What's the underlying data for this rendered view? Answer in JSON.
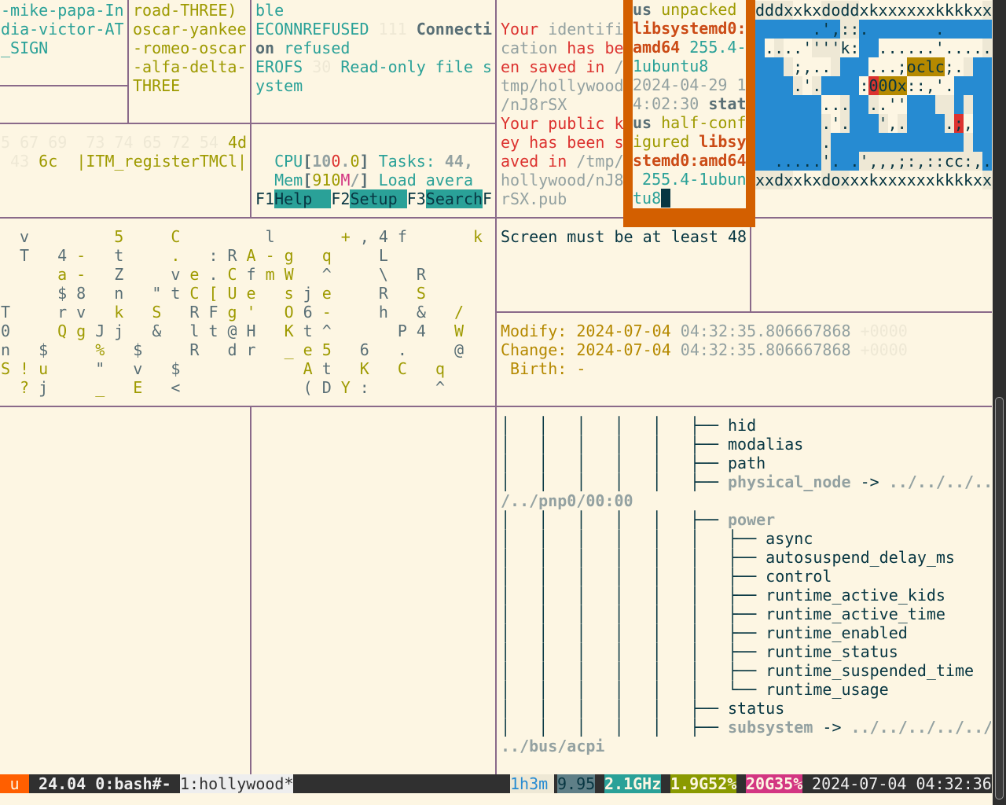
{
  "panes": {
    "a": {
      "lines": [
        [
          [
            "-mike-papa-In",
            "cy"
          ]
        ],
        [
          [
            "dia-victor-AT",
            "cy"
          ]
        ],
        [
          [
            "_SIGN",
            "cy"
          ]
        ]
      ]
    },
    "b": {
      "lines": [
        [
          [
            "road-THREE)",
            "ol"
          ]
        ],
        [
          [
            "oscar-yankee",
            "ol"
          ]
        ],
        [
          [
            "-romeo-oscar",
            "ol"
          ]
        ],
        [
          [
            "-alfa-delta-",
            "ol"
          ]
        ],
        [
          [
            "THREE",
            "ol"
          ]
        ]
      ]
    },
    "c": {
      "lines": [
        [
          [
            "ble",
            "cy"
          ]
        ],
        [
          [
            "ECONNREFUSED",
            "cy"
          ],
          [
            " 111 ",
            "fa"
          ],
          [
            "Connecti",
            "dkb"
          ]
        ],
        [
          [
            "on",
            "dkb"
          ],
          [
            " refused",
            "cy"
          ]
        ],
        [
          [
            "EROFS",
            "cy"
          ],
          [
            " 30 ",
            "fa"
          ],
          [
            "Read-only file s",
            "cy"
          ]
        ],
        [
          [
            "ystem",
            "cy"
          ]
        ]
      ]
    },
    "d": {
      "lines": [
        [
          [
            "5 67 69  73 74 65 72 54 ",
            "fa"
          ],
          [
            "4d",
            "ol"
          ]
        ],
        [
          [
            " 43 ",
            "fa"
          ],
          [
            "6c",
            "ol"
          ],
          [
            "  |ITM_registerTMCl|",
            "ol"
          ]
        ]
      ]
    },
    "e": {
      "lines": [
        [],
        [
          [
            "  CPU",
            "cy"
          ],
          [
            "[",
            "dkb"
          ],
          [
            "10",
            "grb"
          ],
          [
            "0",
            "rd"
          ],
          [
            ".",
            "grb"
          ],
          [
            "0",
            "ol"
          ],
          [
            "]",
            "dkb"
          ],
          [
            " Tasks: ",
            "cy"
          ],
          [
            "44,",
            "grb"
          ]
        ],
        [
          [
            "  Mem",
            "cy"
          ],
          [
            "[",
            "dkb"
          ],
          [
            "910",
            "ol"
          ],
          [
            "M",
            "mg"
          ],
          [
            "/",
            "grb"
          ],
          [
            "]",
            "dkb"
          ],
          [
            " Load avera",
            "cy"
          ]
        ],
        [
          [
            "F1",
            "tx"
          ],
          [
            "Help  ",
            "fk"
          ],
          [
            "F2",
            "tx"
          ],
          [
            "Setup ",
            "fk"
          ],
          [
            "F3",
            "tx"
          ],
          [
            "Search",
            "fk"
          ],
          [
            "F",
            "tx"
          ]
        ]
      ]
    },
    "f": {
      "lines": [
        [],
        [
          [
            "Your",
            "rd"
          ],
          [
            " identifi",
            "gr"
          ]
        ],
        [
          [
            "cation",
            "gr"
          ],
          [
            " has be",
            "rd"
          ]
        ],
        [
          [
            "en saved in ",
            "rd"
          ],
          [
            "/",
            "gr"
          ]
        ],
        [
          [
            "tmp/hollywood",
            "gr"
          ]
        ],
        [
          [
            "/nJ8rSX",
            "gr"
          ]
        ],
        [
          [
            "Your public k",
            "rd"
          ]
        ],
        [
          [
            "ey has been s",
            "rd"
          ]
        ],
        [
          [
            "aved in ",
            "rd"
          ],
          [
            "/tmp/",
            "gr"
          ]
        ],
        [
          [
            "hollywood/nJ8",
            "gr"
          ]
        ],
        [
          [
            "rSX.pub",
            "gr"
          ]
        ]
      ]
    },
    "popup": {
      "lines": [
        [
          [
            "us",
            "dkb"
          ],
          [
            " unpacked",
            "ol"
          ]
        ],
        [
          [
            "libsystemd0:",
            "or"
          ]
        ],
        [
          [
            "amd64",
            "or"
          ],
          [
            " 255.4-",
            "cy"
          ]
        ],
        [
          [
            "1ubuntu8",
            "cy"
          ]
        ],
        [
          [
            "2024-04-29 1",
            "gr"
          ]
        ],
        [
          [
            "4:02:30",
            "gr"
          ],
          [
            " stat",
            "dkb"
          ]
        ],
        [
          [
            "us",
            "dkb"
          ],
          [
            " half-conf",
            "ol"
          ]
        ],
        [
          [
            "igured",
            "ol"
          ],
          [
            " libsy",
            "or"
          ]
        ],
        [
          [
            "stemd0:amd64",
            "or"
          ]
        ],
        [
          [
            " 255.4-1ubun",
            "cy"
          ]
        ],
        [
          [
            "tu8",
            "cy"
          ]
        ]
      ]
    },
    "g": {
      "lines": [
        [
          [
            "Screen must be at least 48",
            "tx"
          ]
        ]
      ]
    },
    "h": {
      "lines": [
        [
          [
            "Modify: 2024-07-04 ",
            "gd"
          ],
          [
            "04:32:35.806667868",
            "gr"
          ],
          [
            " +0000",
            "fa"
          ]
        ],
        [
          [
            "Change: 2024-07-04 ",
            "gd"
          ],
          [
            "04:32:35.806667868",
            "gr"
          ],
          [
            " +0000",
            "fa"
          ]
        ],
        [
          [
            " Birth: -",
            "gd"
          ]
        ]
      ]
    },
    "tree": {
      "lines": [
        [
          [
            "│   │   │   │   │   ├── ",
            "tx"
          ],
          [
            "hid",
            "tx"
          ]
        ],
        [
          [
            "│   │   │   │   │   ├── ",
            "tx"
          ],
          [
            "modalias",
            "tx"
          ]
        ],
        [
          [
            "│   │   │   │   │   ├── ",
            "tx"
          ],
          [
            "path",
            "tx"
          ]
        ],
        [
          [
            "│   │   │   │   │   ├── ",
            "tx"
          ],
          [
            "physical_node",
            "grb"
          ],
          [
            " -> ",
            "tx"
          ],
          [
            "../../../..",
            "grb"
          ]
        ],
        [
          [
            "/../pnp0/00:00",
            "grb"
          ]
        ],
        [
          [
            "│   │   │   │   │   ├── ",
            "tx"
          ],
          [
            "power",
            "grb"
          ]
        ],
        [
          [
            "│   │   │   │   │   │   ├── ",
            "tx"
          ],
          [
            "async",
            "tx"
          ]
        ],
        [
          [
            "│   │   │   │   │   │   ├── ",
            "tx"
          ],
          [
            "autosuspend_delay_ms",
            "tx"
          ]
        ],
        [
          [
            "│   │   │   │   │   │   ├── ",
            "tx"
          ],
          [
            "control",
            "tx"
          ]
        ],
        [
          [
            "│   │   │   │   │   │   ├── ",
            "tx"
          ],
          [
            "runtime_active_kids",
            "tx"
          ]
        ],
        [
          [
            "│   │   │   │   │   │   ├── ",
            "tx"
          ],
          [
            "runtime_active_time",
            "tx"
          ]
        ],
        [
          [
            "│   │   │   │   │   │   ├── ",
            "tx"
          ],
          [
            "runtime_enabled",
            "tx"
          ]
        ],
        [
          [
            "│   │   │   │   │   │   ├── ",
            "tx"
          ],
          [
            "runtime_status",
            "tx"
          ]
        ],
        [
          [
            "│   │   │   │   │   │   ├── ",
            "tx"
          ],
          [
            "runtime_suspended_time",
            "tx"
          ]
        ],
        [
          [
            "│   │   │   │   │   │   └── ",
            "tx"
          ],
          [
            "runtime_usage",
            "tx"
          ]
        ],
        [
          [
            "│   │   │   │   │   ├── ",
            "tx"
          ],
          [
            "status",
            "tx"
          ]
        ],
        [
          [
            "│   │   │   │   │   ├── ",
            "tx"
          ],
          [
            "subsystem",
            "grb"
          ],
          [
            " -> ",
            "tx"
          ],
          [
            "../../../../../",
            "grb"
          ]
        ],
        [
          [
            "../bus/acpi",
            "grb"
          ]
        ]
      ]
    }
  },
  "ascii_map": {
    "rows": [
      "dddxxkxdoddxkxxxxxxkkkkxx",
      "      .',::.       .     ",
      " ....''''k:  ......'.....",
      "    ;,..    ...;oclc;.   ",
      "    .'.    :00Ox::,'.    ",
      "       ...  ..''         ",
      "       .'.   ',.    .;,  ",
      "       .                 ",
      "  .....'. .',,,;:,::cc:,.",
      "xxdxxkxdoxxxkxxxxxxkkkkxx"
    ],
    "bg_masks": [
      "eeeeccceeeeccccccccccccce",
      "BBBBBBBBBeeBBBBBBBBBBBBBB",
      "BceccceeeccBBccccccccccce",
      "BBBecccceBBBccccyyyycceBB",
      "BBBBeceBBBBcryyycccccBBBB",
      "BBBBBBBcceBBecccBBBeeBeBB",
      "BBBBBBBeceBBBeceBBBBercBB",
      "BBBBBBBeBBBBBBBBBBBBBBeBB",
      "BBBBBBBeBBBeeeeeeeeeeeeeB",
      "eeeeccceeecccccccccccccce"
    ],
    "colors": {
      "B": "#268bd2",
      "c": "#fdf6e3",
      "e": "#eee8d5",
      "r": "#dc322f",
      "y": "#b58900"
    }
  },
  "char_grid": {
    "rows": [
      " v    5  C    l   +,4f   k",
      " T 4- t  . :RA-g q  L     ",
      "   a- Z  ve.CfmW ^  \\ R   ",
      "   $8 n \"tC[Ue sje  R S   ",
      "T  rv k S RFg' O6-  h & / ",
      "0  QgJj & lt@H Kt^   P4 W ",
      "n $  % $  R dr _e5 6 .  @ ",
      "S!u  \" v $      At K C q  ",
      " ?j  _ E <      (DY:   ^  "
    ],
    "color_masks": [
      " d    y  y    d   yddd   y",
      " d dy d  y ddyyy y  d     ",
      "   yy d  dydydyy d  d d   ",
      "   dd d ddyyyy ydy  d y   ",
      "d  dd y y ddyy ydy  d d y ",
      "d  yydd d dddd ydd   dd y ",
      "d d  y d  d dd yyy d d  d ",
      "yyy  d d d      yd y y y  ",
      " yd  y y d      ddyd   d  "
    ]
  },
  "status_bar": {
    "session": "u",
    "host_window": " 24.04 0:bash#- ",
    "active_window": "1:hollywood*",
    "uptime": "1h3m",
    "load": "9.95",
    "cpu_freq": "2.1GHz",
    "memory": "1.9G52%",
    "disk": "20G35%",
    "datetime": " 2024-07-04 04:32:36",
    "colors": {
      "session": "#ff5f00",
      "bar": "#303030",
      "active": "#eeeeee",
      "uptime": "#eee8d5",
      "load": "#5f7f87",
      "cpu": "#2aa198",
      "mem": "#8a9a00",
      "disk": "#d33682"
    }
  }
}
